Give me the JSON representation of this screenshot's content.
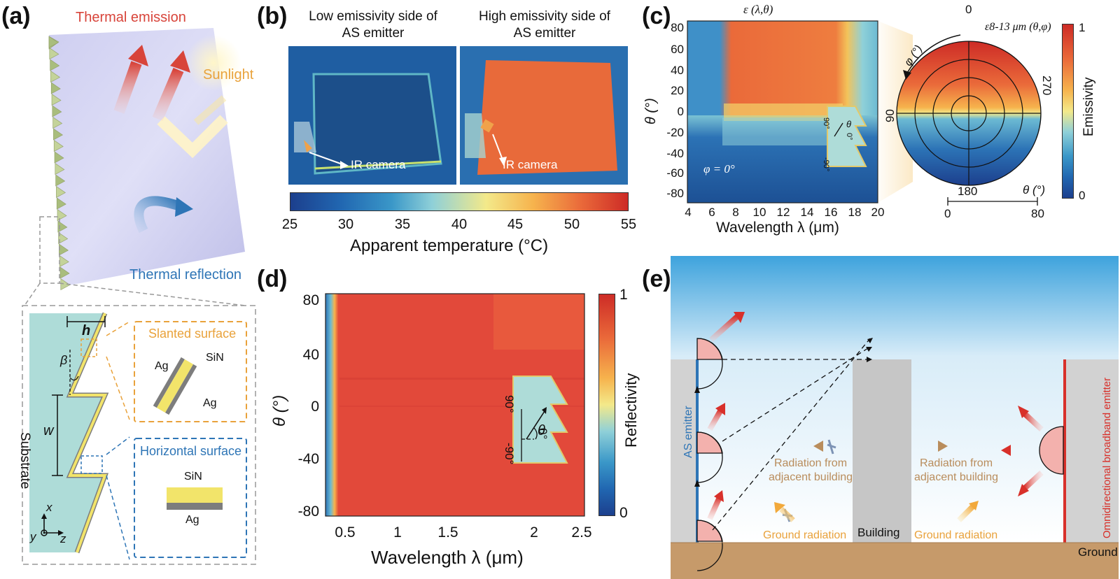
{
  "panel_labels": {
    "a": "(a)",
    "b": "(b)",
    "c": "(c)",
    "d": "(d)",
    "e": "(e)"
  },
  "panel_a": {
    "thermal_emission": "Thermal emission",
    "sunlight": "Sunlight",
    "thermal_reflection": "Thermal reflection",
    "substrate": "Substrate",
    "h": "h",
    "beta": "β",
    "w": "w",
    "slanted_surface": "Slanted surface",
    "horizontal_surface": "Horizontal surface",
    "sin_1": "SiN",
    "ag_1a": "Ag",
    "ag_1b": "Ag",
    "sin_2": "SiN",
    "ag_2": "Ag",
    "axis_x": "x",
    "axis_y": "y",
    "axis_z": "z",
    "colors": {
      "emission": "#d8443a",
      "sunlight": "#e9a23b",
      "reflection": "#2e75b6",
      "substrate": "#aedcd8",
      "gold": "#f2e46a",
      "grey": "#7d7d7d"
    }
  },
  "panel_b": {
    "left_title_1": "Low emissivity side of",
    "left_title_2": "AS emitter",
    "right_title_1": "High emissivity side of",
    "right_title_2": "AS emitter",
    "camera_left": "IR camera",
    "camera_right": "IR camera",
    "colorbar_ticks": [
      "25",
      "30",
      "35",
      "40",
      "45",
      "50",
      "55"
    ],
    "colorbar_label": "Apparent temperature (°C)"
  },
  "panel_c": {
    "title": "ε (λ,θ)",
    "yticks": [
      "80",
      "60",
      "40",
      "20",
      "0",
      "-20",
      "-40",
      "-60",
      "-80"
    ],
    "xticks": [
      "4",
      "6",
      "8",
      "10",
      "12",
      "14",
      "16",
      "18",
      "20"
    ],
    "ylabel": "θ (°)",
    "xlabel": "Wavelength λ (μm)",
    "phi_label": "φ = 0°",
    "inset_90": "90°",
    "inset_0": "0°",
    "inset_m90": "-90°",
    "inset_theta": "θ",
    "polar_title": "ε8-13 μm (θ,φ)",
    "polar_0": "0",
    "polar_90": "90",
    "polar_180": "180",
    "polar_270": "270",
    "polar_phi": "φ (°)",
    "polar_theta": "θ (°)",
    "polar_scale_0": "0",
    "polar_scale_80": "80",
    "colorbar_top": "1",
    "colorbar_bottom": "0",
    "colorbar_label": "Emissivity"
  },
  "panel_d": {
    "yticks": [
      "80",
      "40",
      "0",
      "-40",
      "-80"
    ],
    "xticks": [
      "0.5",
      "1",
      "1.5",
      "2",
      "2.5"
    ],
    "ylabel": "θ (°)",
    "xlabel": "Wavelength λ (μm)",
    "inset_90": "90°",
    "inset_0": "0°",
    "inset_m90": "-90°",
    "inset_theta": "θ",
    "colorbar_top": "1",
    "colorbar_bottom": "0",
    "colorbar_label": "Reflectivity"
  },
  "panel_e": {
    "as_emitter": "AS emitter",
    "radiation_left_1": "Radiation from",
    "radiation_left_2": "adjacent building",
    "radiation_right_1": "Radiation from",
    "radiation_right_2": "adjacent building",
    "ground_radiation_left": "Ground radiation",
    "ground_radiation_right": "Ground radiation",
    "building": "Building",
    "ground": "Ground",
    "omni_emitter": "Omnidirectional broadband emitter"
  }
}
